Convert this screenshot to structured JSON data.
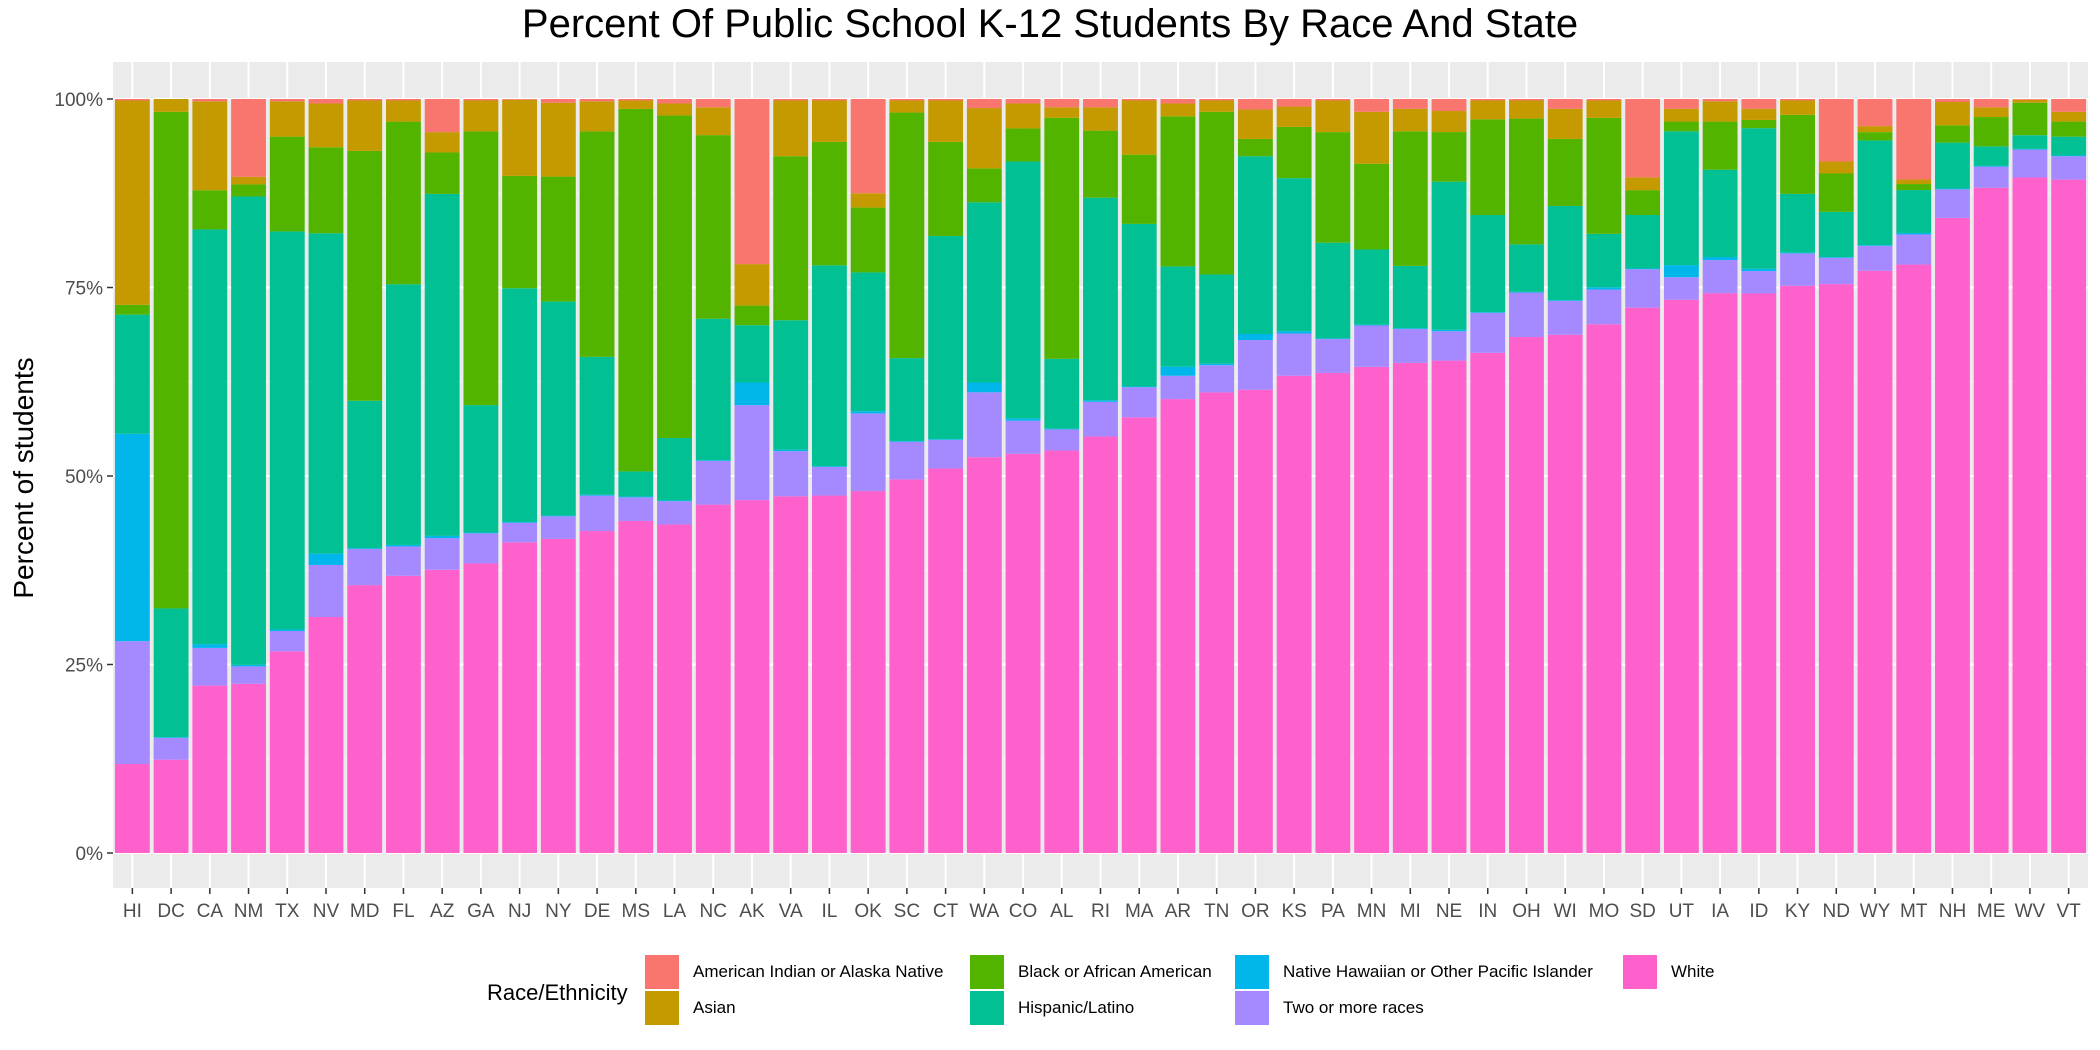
{
  "chart_data": {
    "type": "bar",
    "stacked": true,
    "title": "Percent Of Public School K-12 Students By Race And State",
    "ylabel": "Percent of students",
    "xlabel": "",
    "ylim": [
      0,
      100
    ],
    "yticks": [
      "0%",
      "25%",
      "50%",
      "75%",
      "100%"
    ],
    "grid": true,
    "legend_position": "bottom",
    "legend_title": "Race/Ethnicity",
    "categories": [
      "HI",
      "DC",
      "CA",
      "NM",
      "TX",
      "NV",
      "MD",
      "FL",
      "AZ",
      "GA",
      "NJ",
      "NY",
      "DE",
      "MS",
      "LA",
      "NC",
      "AK",
      "VA",
      "IL",
      "OK",
      "SC",
      "CT",
      "WA",
      "CO",
      "AL",
      "RI",
      "MA",
      "AR",
      "TN",
      "OR",
      "KS",
      "PA",
      "MN",
      "MI",
      "NE",
      "IN",
      "OH",
      "WI",
      "MO",
      "SD",
      "UT",
      "IA",
      "ID",
      "KY",
      "ND",
      "WY",
      "MT",
      "NH",
      "ME",
      "WV",
      "VT"
    ],
    "series": [
      {
        "name": "White",
        "color": "#FF61CC",
        "values": [
          11.8,
          12.4,
          22.2,
          22.4,
          26.8,
          31.3,
          35.6,
          36.8,
          37.6,
          38.4,
          41.2,
          41.7,
          42.7,
          43.6,
          43.7,
          46.3,
          46.8,
          47.4,
          47.5,
          48.0,
          49.6,
          51.1,
          52.5,
          53.0,
          53.6,
          55.3,
          57.9,
          60.2,
          60.9,
          61.5,
          63.3,
          63.8,
          64.6,
          65.2,
          65.5,
          66.4,
          68.5,
          68.8,
          70.2,
          72.4,
          73.6,
          74.4,
          74.8,
          75.3,
          75.6,
          77.3,
          78.2,
          84.4,
          88.5,
          89.5,
          89.4
        ]
      },
      {
        "name": "Two or more races",
        "color": "#A58AFF",
        "values": [
          16.3,
          2.9,
          5.0,
          2.3,
          2.7,
          6.9,
          4.8,
          3.9,
          4.2,
          4.0,
          2.6,
          3.0,
          4.7,
          3.1,
          3.1,
          5.8,
          12.6,
          6.0,
          3.8,
          10.3,
          5.0,
          3.8,
          8.6,
          4.4,
          2.8,
          4.6,
          4.0,
          3.1,
          3.6,
          6.6,
          5.6,
          4.5,
          5.5,
          4.5,
          3.9,
          5.3,
          5.9,
          4.5,
          4.6,
          5.1,
          3.0,
          4.4,
          3.0,
          4.3,
          3.5,
          3.3,
          4.0,
          3.8,
          2.8,
          3.7,
          3.1
        ]
      },
      {
        "name": "Native Hawaiian or Other Pacific Islander",
        "color": "#00B6EB",
        "values": [
          27.5,
          0.1,
          0.5,
          0.2,
          0.2,
          1.5,
          0.1,
          0.2,
          0.3,
          0.1,
          0.1,
          0.1,
          0.1,
          0.1,
          0.1,
          0.1,
          3.0,
          0.2,
          0.1,
          0.3,
          0.1,
          0.1,
          1.3,
          0.3,
          0.1,
          0.2,
          0.1,
          1.2,
          0.2,
          0.8,
          0.3,
          0.1,
          0.1,
          0.1,
          0.2,
          0.1,
          0.1,
          0.1,
          0.3,
          0.1,
          1.6,
          0.4,
          0.3,
          0.1,
          0.1,
          0.1,
          0.2,
          0.1,
          0.1,
          0.1,
          0.1
        ]
      },
      {
        "name": "Hispanic/Latino",
        "color": "#00C094",
        "values": [
          15.8,
          17.1,
          55.0,
          62.0,
          52.9,
          42.5,
          19.6,
          34.6,
          45.4,
          16.9,
          31.0,
          28.4,
          18.3,
          3.3,
          8.3,
          18.8,
          7.6,
          17.2,
          26.7,
          18.4,
          11.0,
          27.0,
          23.9,
          34.1,
          9.3,
          26.9,
          21.6,
          13.3,
          11.8,
          23.6,
          20.3,
          12.7,
          10.0,
          8.3,
          19.7,
          12.9,
          6.3,
          12.5,
          7.1,
          7.1,
          17.8,
          11.6,
          18.8,
          7.8,
          6.0,
          13.9,
          5.7,
          6.1,
          2.6,
          1.8,
          2.5
        ]
      },
      {
        "name": "Black or African American",
        "color": "#53B400",
        "values": [
          1.3,
          66.0,
          5.2,
          1.6,
          12.6,
          11.4,
          33.2,
          21.6,
          5.5,
          36.3,
          14.9,
          16.6,
          29.9,
          47.6,
          42.9,
          24.4,
          2.6,
          21.8,
          16.4,
          8.6,
          32.6,
          12.5,
          4.5,
          4.4,
          32.1,
          8.9,
          9.2,
          19.9,
          21.5,
          2.3,
          6.8,
          14.7,
          11.4,
          17.9,
          6.6,
          12.7,
          16.7,
          8.9,
          15.4,
          3.3,
          1.3,
          6.4,
          1.1,
          10.5,
          5.1,
          1.1,
          0.8,
          2.3,
          3.9,
          4.3,
          2.0
        ]
      },
      {
        "name": "Asian",
        "color": "#C49A00",
        "values": [
          27.1,
          1.7,
          11.8,
          1.0,
          4.7,
          5.8,
          6.7,
          2.8,
          2.7,
          4.1,
          10.1,
          9.8,
          4.0,
          1.1,
          1.6,
          3.7,
          5.5,
          7.4,
          5.5,
          1.9,
          1.6,
          5.5,
          8.0,
          3.3,
          1.4,
          3.1,
          7.2,
          1.7,
          1.5,
          3.9,
          2.7,
          4.2,
          6.9,
          3.0,
          2.8,
          2.5,
          2.4,
          4.0,
          2.3,
          1.7,
          1.7,
          2.7,
          1.5,
          1.9,
          1.6,
          0.8,
          0.6,
          3.1,
          1.3,
          0.4,
          1.3
        ]
      },
      {
        "name": "American Indian or Alaska Native",
        "color": "#F8766D",
        "values": [
          0.2,
          0.0,
          0.3,
          10.3,
          0.3,
          0.6,
          0.2,
          0.2,
          4.4,
          0.2,
          0.1,
          0.5,
          0.3,
          0.2,
          0.6,
          1.1,
          21.9,
          0.2,
          0.2,
          12.5,
          0.2,
          0.2,
          1.2,
          0.6,
          1.1,
          1.1,
          0.2,
          0.6,
          0.2,
          1.4,
          1.0,
          0.2,
          1.7,
          1.3,
          1.6,
          0.2,
          0.2,
          1.3,
          0.2,
          10.4,
          1.3,
          0.3,
          1.3,
          0.2,
          8.3,
          3.6,
          10.7,
          0.4,
          1.1,
          0.1,
          1.7
        ]
      }
    ]
  },
  "legend": {
    "title": "Race/Ethnicity",
    "items": [
      {
        "label": "American Indian or Alaska Native",
        "color": "#F8766D"
      },
      {
        "label": "Asian",
        "color": "#C49A00"
      },
      {
        "label": "Black or African American",
        "color": "#53B400"
      },
      {
        "label": "Hispanic/Latino",
        "color": "#00C094"
      },
      {
        "label": "Native Hawaiian or Other Pacific Islander",
        "color": "#00B6EB"
      },
      {
        "label": "Two or more races",
        "color": "#A58AFF"
      },
      {
        "label": "White",
        "color": "#FF61CC"
      }
    ]
  }
}
